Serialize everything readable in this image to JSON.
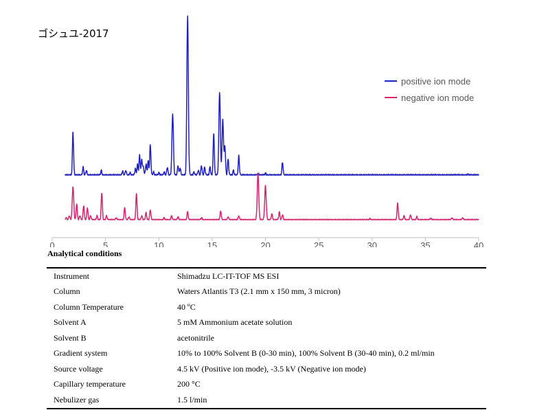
{
  "sample_title": "ゴシュユ-2017",
  "chart_data": {
    "type": "line",
    "title": "ゴシュユ-2017",
    "xlabel": "",
    "ylabel": "",
    "xlim": [
      0,
      40
    ],
    "x_ticks": [
      "0",
      "5",
      "10",
      "15",
      "20",
      "25",
      "30",
      "35",
      "40"
    ],
    "grid": false,
    "legend_position": "right",
    "series": [
      {
        "name": "positive ion mode",
        "color": "#2020C0",
        "baseline": 0,
        "peaks": [
          [
            1.95,
            0.27
          ],
          [
            2.9,
            0.05
          ],
          [
            3.2,
            0.03
          ],
          [
            4.6,
            0.03
          ],
          [
            6.6,
            0.025
          ],
          [
            6.9,
            0.03
          ],
          [
            7.3,
            0.015
          ],
          [
            7.8,
            0.04
          ],
          [
            8.0,
            0.065
          ],
          [
            8.2,
            0.125
          ],
          [
            8.4,
            0.1
          ],
          [
            8.55,
            0.05
          ],
          [
            8.8,
            0.07
          ],
          [
            9.0,
            0.09
          ],
          [
            9.2,
            0.19
          ],
          [
            9.5,
            0.02
          ],
          [
            10.0,
            0.015
          ],
          [
            10.5,
            0.02
          ],
          [
            10.8,
            0.05
          ],
          [
            11.3,
            0.385
          ],
          [
            11.8,
            0.06
          ],
          [
            12.0,
            0.045
          ],
          [
            12.7,
            1.0
          ],
          [
            13.3,
            0.02
          ],
          [
            13.7,
            0.03
          ],
          [
            14.0,
            0.06
          ],
          [
            14.3,
            0.05
          ],
          [
            14.8,
            0.05
          ],
          [
            15.15,
            0.26
          ],
          [
            15.7,
            0.52
          ],
          [
            16.0,
            0.35
          ],
          [
            16.2,
            0.18
          ],
          [
            16.5,
            0.1
          ],
          [
            17.0,
            0.03
          ],
          [
            17.5,
            0.12
          ],
          [
            19.3,
            0.01
          ],
          [
            20.0,
            0.012
          ],
          [
            21.6,
            0.08
          ],
          [
            39.0,
            0.005
          ]
        ]
      },
      {
        "name": "negative ion mode",
        "color": "#D6246E",
        "baseline": 0,
        "peaks": [
          [
            1.3,
            0.02
          ],
          [
            1.6,
            0.04
          ],
          [
            1.95,
            0.33
          ],
          [
            2.3,
            0.16
          ],
          [
            2.6,
            0.04
          ],
          [
            2.95,
            0.14
          ],
          [
            3.3,
            0.12
          ],
          [
            3.6,
            0.04
          ],
          [
            4.2,
            0.04
          ],
          [
            4.65,
            0.27
          ],
          [
            5.1,
            0.04
          ],
          [
            6.0,
            0.02
          ],
          [
            6.8,
            0.12
          ],
          [
            7.2,
            0.03
          ],
          [
            7.9,
            0.26
          ],
          [
            8.4,
            0.04
          ],
          [
            8.8,
            0.07
          ],
          [
            9.2,
            0.1
          ],
          [
            10.5,
            0.02
          ],
          [
            11.2,
            0.04
          ],
          [
            11.8,
            0.03
          ],
          [
            12.7,
            0.08
          ],
          [
            14.0,
            0.02
          ],
          [
            15.8,
            0.09
          ],
          [
            16.5,
            0.03
          ],
          [
            17.5,
            0.04
          ],
          [
            19.3,
            0.46
          ],
          [
            20.0,
            0.34
          ],
          [
            20.6,
            0.06
          ],
          [
            21.3,
            0.08
          ],
          [
            21.6,
            0.05
          ],
          [
            29.8,
            0.01
          ],
          [
            32.4,
            0.17
          ],
          [
            33.0,
            0.04
          ],
          [
            33.6,
            0.05
          ],
          [
            34.2,
            0.03
          ],
          [
            35.5,
            0.015
          ],
          [
            37.5,
            0.02
          ],
          [
            38.5,
            0.02
          ]
        ]
      }
    ]
  },
  "legend": [
    {
      "label": "positive ion mode",
      "color": "#2020C0"
    },
    {
      "label": "negative ion mode",
      "color": "#D6246E"
    }
  ],
  "conditions_heading": "Analytical conditions",
  "conditions": [
    {
      "param": "Instrument",
      "value": "Shimadzu LC-IT-TOF MS ESI"
    },
    {
      "param": "Column",
      "value": "Waters Atlantis T3 (2.1 mm x 150 mm, 3 micron)"
    },
    {
      "param": "Column Temperature",
      "value": "40 ºC"
    },
    {
      "param": "Solvent A",
      "value": "5 mM Ammonium acetate solution"
    },
    {
      "param": "Solvent B",
      "value": "acetonitrile"
    },
    {
      "param": "Gradient system",
      "value": "10% to 100% Solvent B (0-30 min), 100% Solvent B (30-40 min), 0.2 ml/min"
    },
    {
      "param": "Source voltage",
      "value": "4.5 kV (Positive ion mode), -3.5 kV (Negative ion mode)"
    },
    {
      "param": "Capillary temperature",
      "value": "200 °C"
    },
    {
      "param": "Nebulizer gas",
      "value": "1.5 l/min"
    }
  ]
}
